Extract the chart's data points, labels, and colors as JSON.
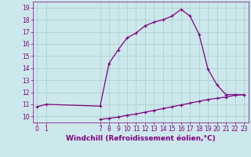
{
  "background_color": "#cce8ec",
  "line_color": "#800080",
  "grid_color": "#aacccc",
  "xlabel": "Windchill (Refroidissement éolien,°C)",
  "xlim": [
    -0.5,
    23.5
  ],
  "ylim": [
    9.5,
    19.5
  ],
  "xticks": [
    0,
    1,
    7,
    8,
    9,
    10,
    11,
    12,
    13,
    14,
    15,
    16,
    17,
    18,
    19,
    20,
    21,
    22,
    23
  ],
  "yticks": [
    10,
    11,
    12,
    13,
    14,
    15,
    16,
    17,
    18,
    19
  ],
  "upper_x": [
    0,
    1,
    7,
    8,
    9,
    10,
    11,
    12,
    13,
    14,
    15,
    16,
    17,
    18,
    19,
    20,
    21,
    22,
    23
  ],
  "upper_y": [
    10.8,
    11.0,
    10.85,
    14.4,
    15.5,
    16.5,
    16.9,
    17.5,
    17.8,
    18.0,
    18.3,
    18.85,
    18.3,
    16.8,
    13.9,
    12.6,
    11.8,
    11.8,
    11.8
  ],
  "lower_x": [
    7,
    8,
    9,
    10,
    11,
    12,
    13,
    14,
    15,
    16,
    17,
    18,
    19,
    20,
    21,
    22,
    23
  ],
  "lower_y": [
    9.75,
    9.85,
    9.95,
    10.1,
    10.2,
    10.35,
    10.5,
    10.65,
    10.8,
    10.95,
    11.1,
    11.25,
    11.4,
    11.5,
    11.6,
    11.75,
    11.8
  ],
  "markersize": 3,
  "linewidth": 0.9,
  "tick_fontsize": 5.5,
  "label_fontsize": 6.5
}
